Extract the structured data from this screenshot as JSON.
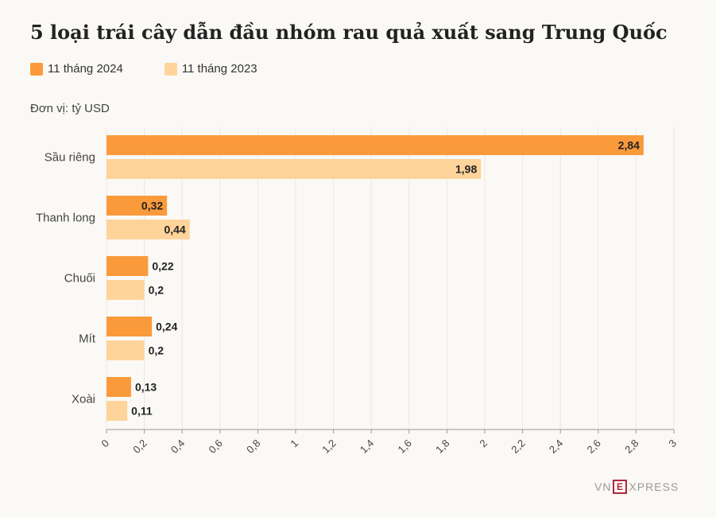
{
  "chart_data": {
    "type": "bar",
    "orientation": "horizontal",
    "title": "5 loại trái cây dẫn đầu nhóm rau quả xuất sang Trung Quốc",
    "unit_label": "Đơn vị: tỷ USD",
    "categories": [
      "Sầu riêng",
      "Thanh long",
      "Chuối",
      "Mít",
      "Xoài"
    ],
    "series": [
      {
        "name": "11 tháng 2024",
        "color": "#fb9a3b",
        "values": [
          2.84,
          0.32,
          0.22,
          0.24,
          0.13
        ],
        "labels": [
          "2,84",
          "0,32",
          "0,22",
          "0,24",
          "0,13"
        ]
      },
      {
        "name": "11 tháng 2023",
        "color": "#ffd49a",
        "values": [
          1.98,
          0.44,
          0.2,
          0.2,
          0.11
        ],
        "labels": [
          "1,98",
          "0,44",
          "0,2",
          "0,2",
          "0,11"
        ]
      }
    ],
    "xlim": [
      0,
      3
    ],
    "x_ticks": [
      0,
      0.2,
      0.4,
      0.6,
      0.8,
      1,
      1.2,
      1.4,
      1.6,
      1.8,
      2,
      2.2,
      2.4,
      2.6,
      2.8,
      3
    ],
    "x_tick_labels": [
      "0",
      "0,2",
      "0,4",
      "0,6",
      "0,8",
      "1",
      "1,2",
      "1,4",
      "1,6",
      "1,8",
      "2",
      "2,2",
      "2,4",
      "2,6",
      "2,8",
      "3"
    ],
    "grid": true,
    "legend_position": "top-left"
  },
  "logo": {
    "vn": "VN",
    "e": "E",
    "press": "XPRESS"
  }
}
